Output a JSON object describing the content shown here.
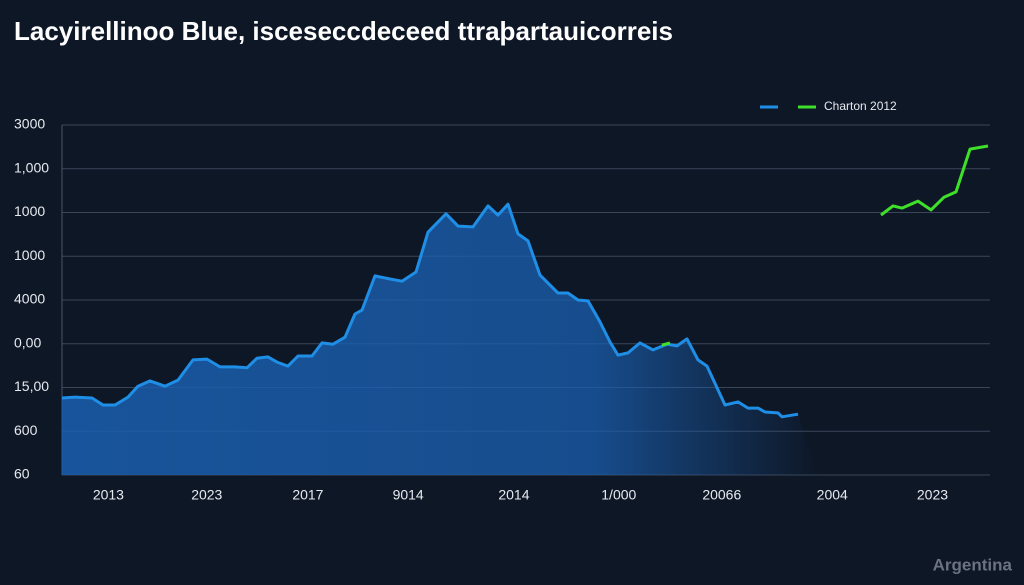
{
  "chart_data": {
    "type": "line",
    "title": "Lacyirellinoo Blue, isceseccdeceed ttraþartauicorreis",
    "watermark": "Argentina",
    "xlim": [
      0,
      100
    ],
    "xticks": [
      {
        "value": 5,
        "label": "2013"
      },
      {
        "value": 15.6,
        "label": "2023"
      },
      {
        "value": 26.5,
        "label": "2017"
      },
      {
        "value": 37.3,
        "label": "9014"
      },
      {
        "value": 48.7,
        "label": "2014"
      },
      {
        "value": 60,
        "label": "1/000"
      },
      {
        "value": 71.1,
        "label": "20066"
      },
      {
        "value": 83,
        "label": "2004"
      },
      {
        "value": 93.8,
        "label": "2023"
      }
    ],
    "ylim": [
      0,
      8
    ],
    "yticks": [
      {
        "value": 0,
        "label": "60"
      },
      {
        "value": 1,
        "label": "600"
      },
      {
        "value": 2,
        "label": "15,00"
      },
      {
        "value": 3,
        "label": "0,00"
      },
      {
        "value": 4,
        "label": "4000"
      },
      {
        "value": 5,
        "label": "1000"
      },
      {
        "value": 6,
        "label": "1000"
      },
      {
        "value": 7,
        "label": "1,000"
      },
      {
        "value": 8,
        "label": "3000"
      }
    ],
    "grid": true,
    "legend": "top-right",
    "series": [
      {
        "color": "#1f8ee6",
        "area": true,
        "x": [
          0,
          1.4,
          3.23,
          4.42,
          5.71,
          7.11,
          8.19,
          9.48,
          11.1,
          12.5,
          14.12,
          15.63,
          17.03,
          18.64,
          19.94,
          21.01,
          22.2,
          23.17,
          24.35,
          25.43,
          26.94,
          28.02,
          29.2,
          30.5,
          31.57,
          32.33,
          33.73,
          35.34,
          36.64,
          38.15,
          39.44,
          41.38,
          42.67,
          44.29,
          45.91,
          46.98,
          48.06,
          49.14,
          50.22,
          51.51,
          52.59,
          53.45,
          54.53,
          55.6,
          56.68,
          57.97,
          59.05,
          59.91,
          60.99,
          62.28,
          63.69,
          65.19,
          66.27,
          67.35,
          68.53,
          69.5,
          71.44,
          72.84,
          73.92,
          75,
          75.75,
          77.16,
          77.59,
          79.31
        ],
        "values": [
          1.76,
          1.78,
          1.76,
          1.6,
          1.6,
          1.78,
          2.03,
          2.15,
          2.03,
          2.17,
          2.63,
          2.65,
          2.47,
          2.47,
          2.45,
          2.67,
          2.7,
          2.58,
          2.49,
          2.72,
          2.72,
          3.02,
          2.99,
          3.15,
          3.68,
          3.77,
          4.55,
          4.48,
          4.43,
          4.64,
          5.55,
          5.97,
          5.69,
          5.67,
          6.15,
          5.94,
          6.19,
          5.51,
          5.35,
          4.57,
          4.34,
          4.16,
          4.16,
          4.0,
          3.98,
          3.5,
          3.04,
          2.74,
          2.79,
          3.02,
          2.86,
          2.99,
          2.95,
          3.11,
          2.63,
          2.49,
          1.6,
          1.67,
          1.53,
          1.53,
          1.44,
          1.42,
          1.33,
          1.39
        ]
      },
      {
        "name": "Charton 2012",
        "color": "#3ee02a",
        "x": [
          64.66,
          65.52,
          null,
          88.25,
          89.55,
          90.52,
          92.24,
          93.64,
          95.04,
          96.34,
          97.84,
          99.78
        ],
        "values": [
          2.97,
          3.02,
          null,
          5.94,
          6.15,
          6.1,
          6.26,
          6.06,
          6.35,
          6.47,
          7.45,
          7.52
        ]
      }
    ]
  }
}
